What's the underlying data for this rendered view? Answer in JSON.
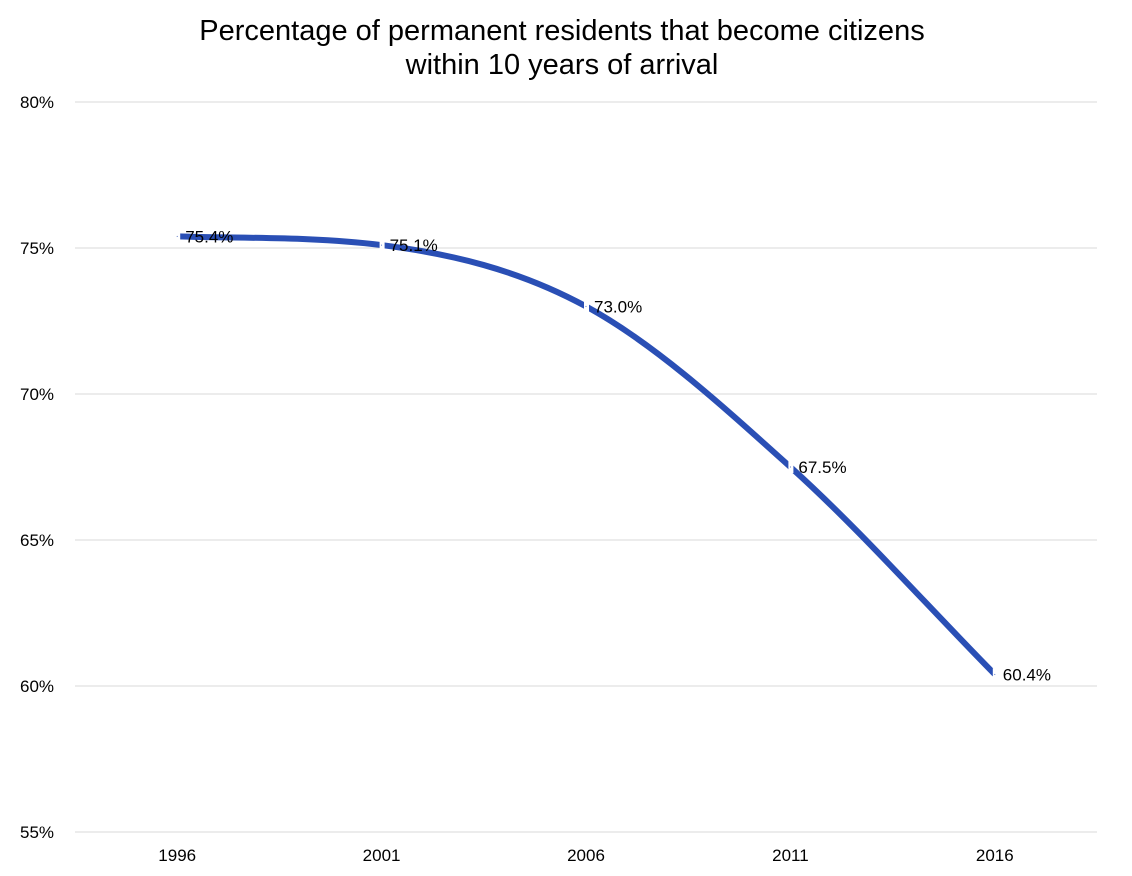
{
  "chart_data": {
    "type": "line",
    "title_lines": [
      "Percentage of permanent residents that become citizens",
      "within 10 years of arrival"
    ],
    "categories": [
      "1996",
      "2001",
      "2006",
      "2011",
      "2016"
    ],
    "series": [
      {
        "values": [
          75.4,
          75.1,
          73.0,
          67.5,
          60.4
        ],
        "color": "#2a4fb5",
        "smooth": true
      }
    ],
    "data_labels": [
      "75.4%",
      "75.1%",
      "73.0%",
      "67.5%",
      "60.4%"
    ],
    "y_ticks": [
      55,
      60,
      65,
      70,
      75,
      80
    ],
    "y_tick_labels": [
      "55%",
      "60%",
      "65%",
      "70%",
      "75%",
      "80%"
    ],
    "ylim": [
      55,
      80
    ],
    "grid": true,
    "legend": "none"
  }
}
